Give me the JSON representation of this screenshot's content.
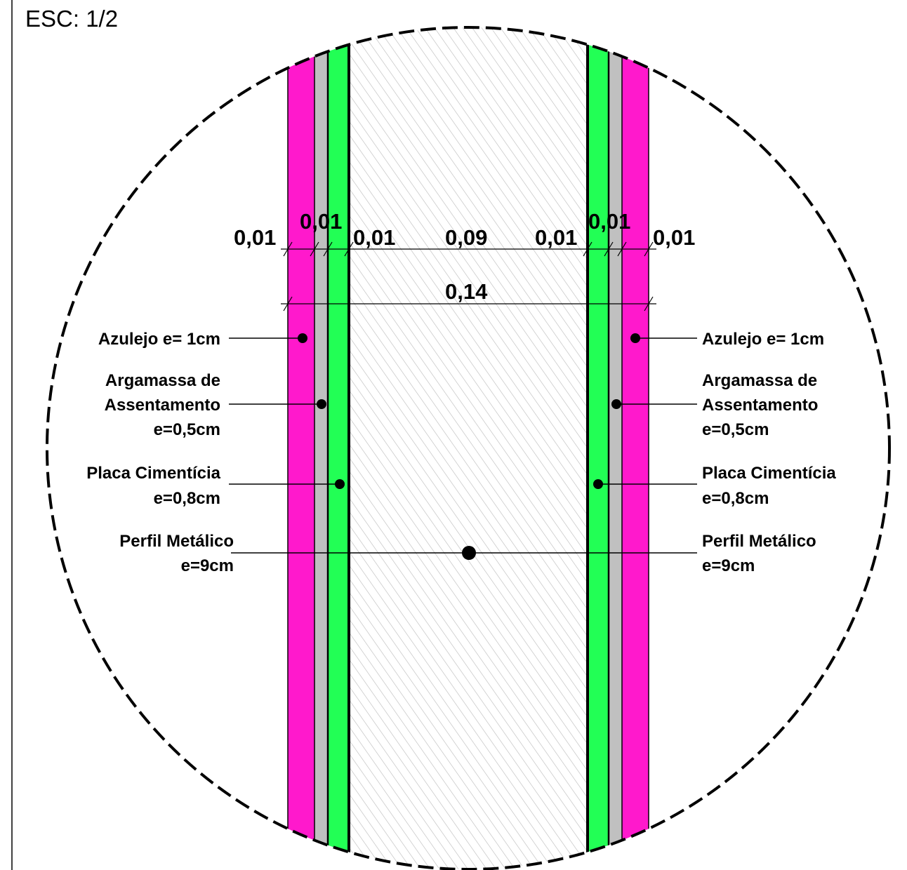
{
  "scale_label": "ESC: 1/2",
  "colors": {
    "tile": "#ff19cc",
    "mortar": "#c0c0c0",
    "cement_board": "#22ff55",
    "hatch": "#b8b8b8",
    "outline": "#000000"
  },
  "dimensions": {
    "left_tile": "0,01",
    "left_mortar": "0,01",
    "left_board": "0,01",
    "steel_profile": "0,09",
    "right_board": "0,01",
    "right_mortar": "0,01",
    "right_tile": "0,01",
    "total": "0,14"
  },
  "labels_left": {
    "tile": [
      "Azulejo e= 1cm"
    ],
    "mortar": [
      "Argamassa de",
      "Assentamento",
      "e=0,5cm"
    ],
    "board": [
      "Placa Cimentícia",
      "e=0,8cm"
    ],
    "profile": [
      "Perfil Metálico",
      "e=9cm"
    ]
  },
  "labels_right": {
    "tile": [
      "Azulejo e= 1cm"
    ],
    "mortar": [
      "Argamassa de",
      "Assentamento",
      "e=0,5cm"
    ],
    "board": [
      "Placa Cimentícia",
      "e=0,8cm"
    ],
    "profile": [
      "Perfil Metálico",
      "e=9cm"
    ]
  }
}
